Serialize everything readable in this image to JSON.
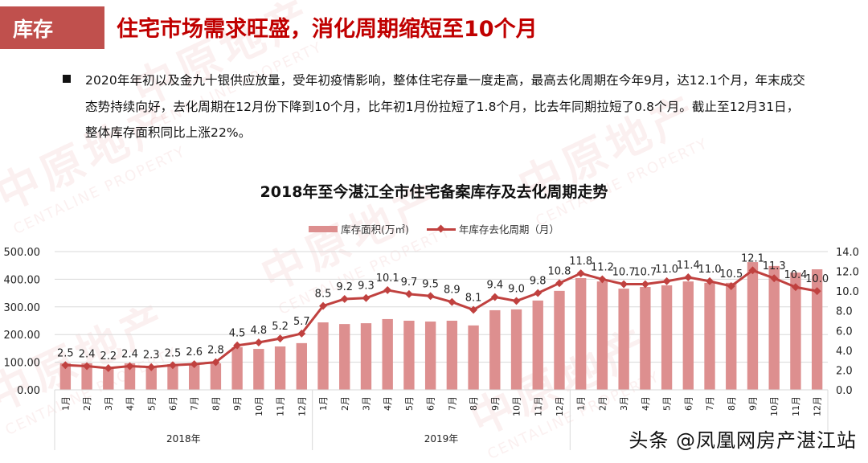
{
  "header": {
    "tag": "库存",
    "headline": "住宅市场需求旺盛，消化周期缩短至10个月"
  },
  "bullet": {
    "text": "2020年年初以及金九十银供应放量，受年初疫情影响，整体住宅存量一度走高，最高去化周期在今年9月，达12.1个月，年末成交态势持续向好，去化周期在12月份下降到10个月，比年初1月份拉短了1.8个月，比去年同期拉短了0.8个月。截止至12月31日，整体库存面积同比上涨22%。"
  },
  "watermark": {
    "cn": "中原地产",
    "en": "CENTALINE PROPERTY"
  },
  "credit": "头条 @凤凰网房产湛江站",
  "colors": {
    "tag_bg": "#c0504d",
    "headline": "#c00000",
    "bar": "#dd8f8f",
    "line": "#c0413f",
    "grid": "#d9d9d9"
  },
  "chart_data": {
    "type": "bar+line",
    "title": "2018年至今湛江全市住宅备案库存及去化周期走势",
    "legend": [
      "库存面积(万㎡)",
      "年库存去化周期（月）"
    ],
    "legend_position": "top",
    "grid": true,
    "years": [
      "2018年",
      "2019年",
      ""
    ],
    "categories": [
      "1月",
      "2月",
      "3月",
      "4月",
      "5月",
      "6月",
      "7月",
      "8月",
      "9月",
      "10月",
      "11月",
      "12月",
      "1月",
      "2月",
      "3月",
      "4月",
      "5月",
      "6月",
      "7月",
      "8月",
      "9月",
      "10月",
      "11月",
      "12月",
      "1月",
      "2月",
      "3月",
      "4月",
      "5月",
      "6月",
      "7月",
      "8月",
      "9月",
      "10月",
      "11月",
      "12月"
    ],
    "y_left": {
      "label": "库存面积(万㎡)",
      "ticks": [
        "0.00",
        "100.00",
        "200.00",
        "300.00",
        "400.00",
        "500.00"
      ],
      "range": [
        0,
        500
      ]
    },
    "y_right": {
      "label": "年库存去化周期（月）",
      "ticks": [
        "0.0",
        "2.0",
        "4.0",
        "6.0",
        "8.0",
        "10.0",
        "12.0",
        "14.0"
      ],
      "range": [
        0,
        14
      ]
    },
    "series": [
      {
        "name": "库存面积(万㎡)",
        "type": "bar",
        "axis": "left",
        "values": [
          96,
          96,
          84,
          96,
          87,
          93,
          93,
          96,
          154,
          148,
          157,
          169,
          244,
          238,
          241,
          256,
          250,
          247,
          250,
          233,
          288,
          291,
          323,
          358,
          404,
          392,
          366,
          372,
          378,
          392,
          387,
          387,
          462,
          448,
          424,
          436
        ]
      },
      {
        "name": "年库存去化周期（月）",
        "type": "line",
        "axis": "right",
        "values": [
          2.5,
          2.4,
          2.2,
          2.4,
          2.3,
          2.5,
          2.6,
          2.8,
          4.5,
          4.8,
          5.2,
          5.7,
          8.5,
          9.2,
          9.3,
          10.1,
          9.7,
          9.5,
          8.9,
          8.1,
          9.4,
          9.0,
          9.8,
          10.8,
          11.8,
          11.2,
          10.7,
          10.7,
          11.0,
          11.4,
          11.0,
          10.5,
          12.1,
          11.3,
          10.4,
          10.0
        ],
        "labels": [
          "2.5",
          "2.4",
          "2.2",
          "2.4",
          "2.3",
          "2.5",
          "2.6",
          "2.8",
          "4.5",
          "4.8",
          "5.2",
          "5.7",
          "8.5",
          "9.2",
          "9.3",
          "10.1",
          "9.7",
          "9.5",
          "8.9",
          "8.1",
          "9.4",
          "9.0",
          "9.8",
          "10.8",
          "11.8",
          "11.2",
          "10.7",
          "10.7",
          "11.0",
          "11.4",
          "11.0",
          "10.5",
          "12.1",
          "11.3",
          "10.4",
          "10.0"
        ]
      }
    ]
  }
}
